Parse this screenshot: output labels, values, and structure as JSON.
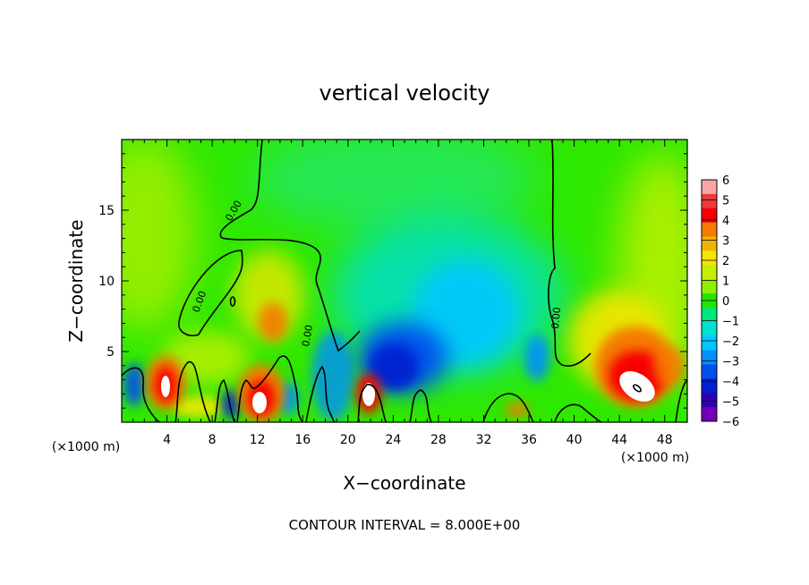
{
  "chart_data": {
    "type": "heatmap",
    "title": "vertical velocity",
    "xlabel": "X−coordinate",
    "ylabel": "Z−coordinate",
    "x_unit_label": "(×1000 m)",
    "y_unit_label": "(×1000 m)",
    "footer": "CONTOUR INTERVAL = 8.000E+00",
    "xlim": [
      0,
      50
    ],
    "ylim": [
      0,
      20
    ],
    "x_ticks": [
      4,
      8,
      12,
      16,
      20,
      24,
      28,
      32,
      36,
      40,
      44,
      48
    ],
    "y_ticks": [
      5,
      10,
      15
    ],
    "colorbar": {
      "min": -6,
      "max": 6,
      "ticks": [
        "6",
        "5",
        "4",
        "3",
        "2",
        "1",
        "0",
        "−1",
        "−2",
        "−3",
        "−4",
        "−5",
        "−6"
      ],
      "colors": [
        "#f7a6a6",
        "#f03a3a",
        "#f70000",
        "#f57a00",
        "#f0b400",
        "#f5e600",
        "#c4f000",
        "#8ff000",
        "#22e600",
        "#00e87a",
        "#00e0d0",
        "#00c8ff",
        "#0090ff",
        "#0050f0",
        "#0020d0",
        "#3000b0",
        "#7000b8"
      ]
    },
    "contour_label": "0.00",
    "features": [
      {
        "kind": "updraft",
        "x": 4,
        "z": 2.8,
        "value": 6
      },
      {
        "kind": "updraft",
        "x": 12.5,
        "z": 1.7,
        "value": 6
      },
      {
        "kind": "updraft",
        "x": 22,
        "z": 2.0,
        "value": 6
      },
      {
        "kind": "updraft",
        "x": 45.5,
        "z": 2.4,
        "value": 6
      },
      {
        "kind": "downdraft",
        "x": 23.5,
        "z": 4.0,
        "value": -5
      },
      {
        "kind": "downdraft",
        "x": 10,
        "z": 1.5,
        "value": -4
      },
      {
        "kind": "downdraft",
        "x": 30.5,
        "z": 8.0,
        "value": -2
      }
    ]
  }
}
